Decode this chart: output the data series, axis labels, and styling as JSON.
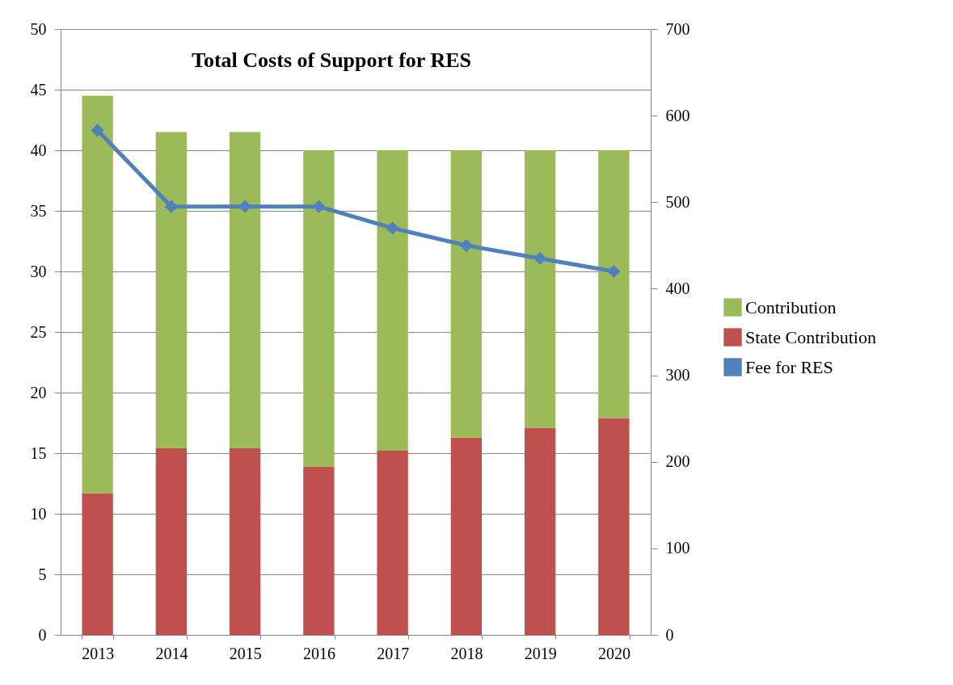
{
  "chart_data": {
    "type": "bar",
    "title": "Total Costs of Support for RES",
    "categories": [
      "2013",
      "2014",
      "2015",
      "2016",
      "2017",
      "2018",
      "2019",
      "2020"
    ],
    "stacked": true,
    "series": [
      {
        "name": "State Contribution",
        "color": "#c0504d",
        "values": [
          11.7,
          15.4,
          15.4,
          13.9,
          15.2,
          16.3,
          17.1,
          17.9
        ]
      },
      {
        "name": "Contribution",
        "color": "#9bbb59",
        "values": [
          32.8,
          26.1,
          26.1,
          26.1,
          24.8,
          23.7,
          22.9,
          22.1
        ]
      },
      {
        "name": "Fee for RES",
        "type": "line",
        "axis": "y2",
        "color": "#4f81bd",
        "values": [
          583,
          495,
          495,
          495,
          470,
          450,
          435,
          420
        ]
      }
    ],
    "ylim": [
      0,
      50
    ],
    "yticks": [
      0,
      5,
      10,
      15,
      20,
      25,
      30,
      35,
      40,
      45,
      50
    ],
    "y2lim": [
      0,
      700
    ],
    "y2ticks": [
      0,
      100,
      200,
      300,
      400,
      500,
      600,
      700
    ],
    "grid": "y",
    "legend": "right",
    "marker": "diamond",
    "line_style": "solid"
  }
}
